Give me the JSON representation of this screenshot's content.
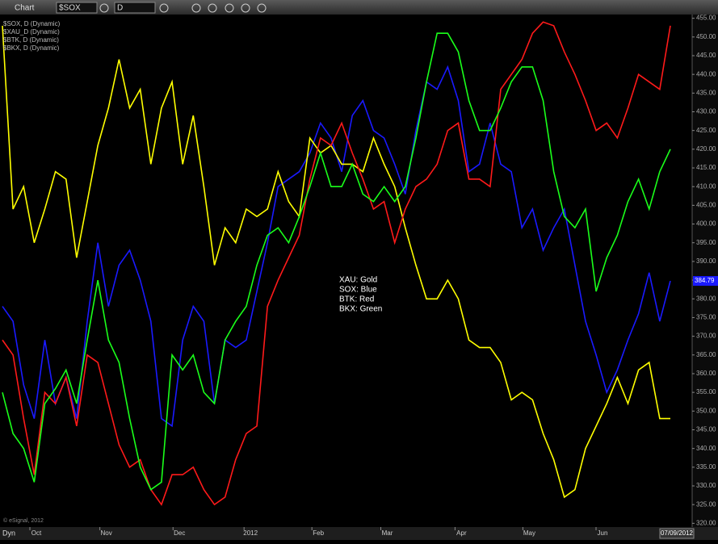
{
  "toolbar": {
    "title": "Chart",
    "symbol": "$SOX",
    "interval": "D"
  },
  "footer": {
    "mode": "Dyn",
    "copyright": "© eSignal, 2012",
    "date": "07/09/2012"
  },
  "chart_data": {
    "type": "line",
    "annotations": [
      "XAU:  Gold",
      "SOX:  Blue",
      "BTK:  Red",
      "BKX:  Green"
    ],
    "last_value_label": "384.79",
    "xlim": [
      0,
      63
    ],
    "xticks": [
      {
        "value": 3.2,
        "label": "Oct"
      },
      {
        "value": 9.8,
        "label": "Nov"
      },
      {
        "value": 16.7,
        "label": "Dec"
      },
      {
        "value": 23.4,
        "label": "2012"
      },
      {
        "value": 29.8,
        "label": "Feb"
      },
      {
        "value": 36.3,
        "label": "Mar"
      },
      {
        "value": 43.3,
        "label": "Apr"
      },
      {
        "value": 49.7,
        "label": "May"
      },
      {
        "value": 56.6,
        "label": "Jun"
      }
    ],
    "ylim": [
      319,
      456
    ],
    "yticks": [
      {
        "value": 320,
        "label": "320.00"
      },
      {
        "value": 325,
        "label": "325.00"
      },
      {
        "value": 330,
        "label": "330.00"
      },
      {
        "value": 335,
        "label": "335.00"
      },
      {
        "value": 340,
        "label": "340.00"
      },
      {
        "value": 345,
        "label": "345.00"
      },
      {
        "value": 350,
        "label": "350.00"
      },
      {
        "value": 355,
        "label": "355.00"
      },
      {
        "value": 360,
        "label": "360.00"
      },
      {
        "value": 365,
        "label": "365.00"
      },
      {
        "value": 370,
        "label": "370.00"
      },
      {
        "value": 375,
        "label": "375.00"
      },
      {
        "value": 380,
        "label": "380.00"
      },
      {
        "value": 385,
        "label": "385.00"
      },
      {
        "value": 390,
        "label": "390.00"
      },
      {
        "value": 395,
        "label": "395.00"
      },
      {
        "value": 400,
        "label": "400.00"
      },
      {
        "value": 405,
        "label": "405.00"
      },
      {
        "value": 410,
        "label": "410.00"
      },
      {
        "value": 415,
        "label": "415.00"
      },
      {
        "value": 420,
        "label": "420.00"
      },
      {
        "value": 425,
        "label": "425.00"
      },
      {
        "value": 430,
        "label": "430.00"
      },
      {
        "value": 435,
        "label": "435.00"
      },
      {
        "value": 440,
        "label": "440.00"
      },
      {
        "value": 445,
        "label": "445.00"
      },
      {
        "value": 450,
        "label": "450.00"
      },
      {
        "value": 455,
        "label": "455.00"
      }
    ],
    "grid": false,
    "series": [
      {
        "name": "$SOX, D (Dynamic)",
        "color": "#1a1aff",
        "values": [
          378,
          374,
          357,
          348,
          369,
          352,
          359,
          348,
          374,
          395,
          378,
          389,
          393,
          385,
          374,
          348,
          346,
          369,
          378,
          374,
          352,
          369,
          367,
          369,
          382,
          395,
          410,
          412,
          414,
          419,
          427,
          423,
          414,
          429,
          433,
          425,
          423,
          416,
          408,
          425,
          438,
          436,
          442,
          433,
          414,
          416,
          427,
          416,
          414,
          399,
          404,
          393,
          399,
          404,
          389,
          374,
          365,
          355,
          361,
          369,
          376,
          387,
          374,
          384.79
        ]
      },
      {
        "name": "$XAU_D (Dynamic)",
        "color": "#ffff00",
        "values": [
          453,
          404,
          410,
          395,
          404,
          414,
          412,
          391,
          406,
          421,
          431,
          444,
          431,
          436,
          416,
          431,
          438,
          416,
          429,
          410,
          389,
          399,
          395,
          404,
          402,
          404,
          414,
          406,
          402,
          423,
          419,
          421,
          416,
          416,
          414,
          423,
          416,
          410,
          399,
          389,
          380,
          380,
          385,
          380,
          369,
          367,
          367,
          363,
          353,
          355,
          353,
          344,
          337,
          327,
          329,
          340,
          346,
          352,
          359,
          352,
          361,
          363,
          348,
          348
        ]
      },
      {
        "name": "$BTK, D (Dynamic)",
        "color": "#ff1a1a",
        "values": [
          369,
          365,
          348,
          333,
          355,
          352,
          359,
          346,
          365,
          363,
          352,
          341,
          335,
          337,
          329,
          325,
          333,
          333,
          335,
          329,
          325,
          327,
          337,
          344,
          346,
          378,
          385,
          391,
          397,
          412,
          423,
          421,
          427,
          419,
          412,
          404,
          406,
          395,
          404,
          410,
          412,
          416,
          425,
          427,
          412,
          412,
          410,
          436,
          440,
          444,
          451,
          454,
          453,
          446,
          440,
          433,
          425,
          427,
          423,
          431,
          440,
          438,
          436,
          453
        ]
      },
      {
        "name": "$BKX, D (Dynamic)",
        "color": "#1aff1a",
        "values": [
          355,
          344,
          340,
          331,
          352,
          356,
          361,
          352,
          369,
          385,
          369,
          363,
          348,
          335,
          329,
          331,
          365,
          361,
          365,
          355,
          352,
          369,
          374,
          378,
          389,
          397,
          399,
          395,
          402,
          410,
          419,
          410,
          410,
          416,
          408,
          406,
          410,
          406,
          410,
          423,
          438,
          451,
          451,
          446,
          433,
          425,
          425,
          431,
          438,
          442,
          442,
          433,
          414,
          402,
          399,
          404,
          382,
          391,
          397,
          406,
          412,
          404,
          414,
          420
        ]
      }
    ]
  }
}
